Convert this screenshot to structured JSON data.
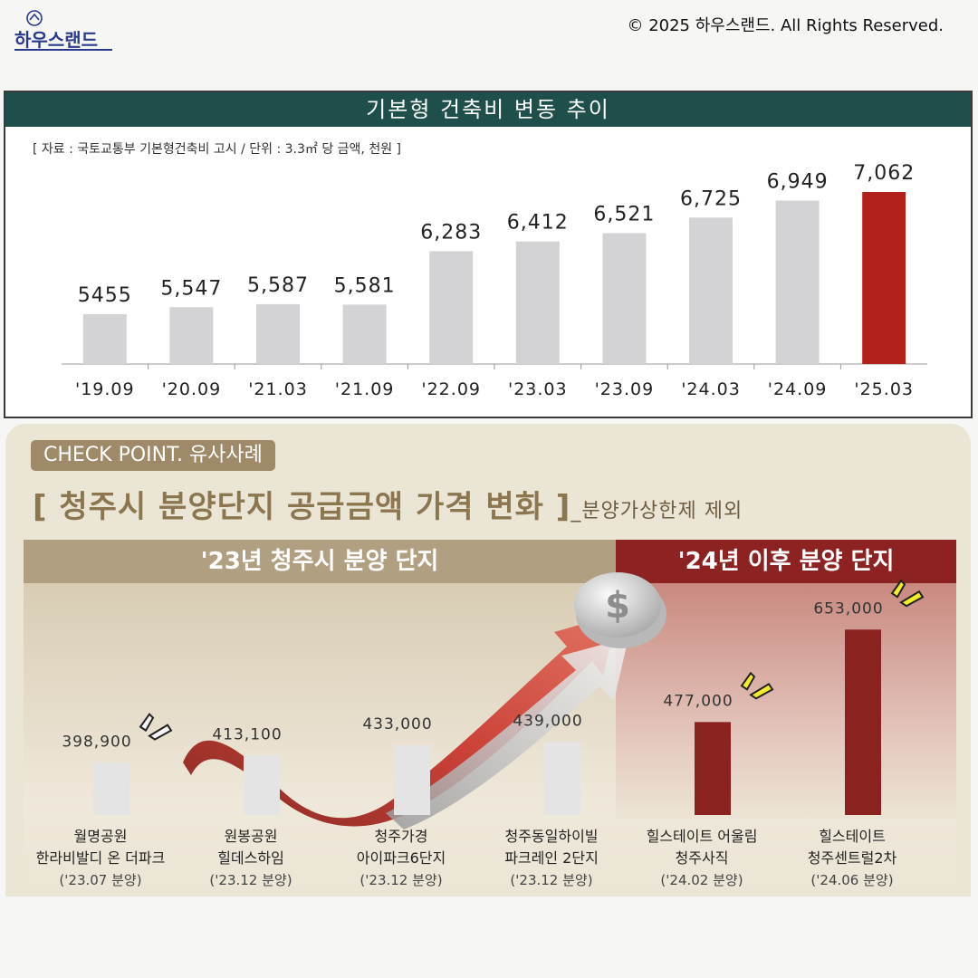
{
  "header": {
    "logo_text": "하우스랜드",
    "copyright": "© 2025 하우스랜드. All Rights Reserved."
  },
  "panel1": {
    "title": "기본형 건축비 변동 추이",
    "source": "[ 자료 : 국토교통부 기본형건축비 고시 / 단위 : 3.3㎡ 당 금액, 천원 ]"
  },
  "panel2": {
    "badge": "CHECK POINT. 유사사례",
    "subtitle": "[ 청주시 분양단지 공급금액 가격 변화 ]",
    "subtitle_note": "_분양가상한제 제외",
    "group_left": "'23년 청주시 분양 단지",
    "group_right": "'24년 이후 분양 단지"
  },
  "colors": {
    "bar_gray": "#d3d3d5",
    "bar_highlight": "#b2221b",
    "bar_recent": "#8a2220",
    "header_green": "#1f4f4a",
    "accent_brown": "#9e8a68"
  },
  "icons": [
    "dollar-coin-icon",
    "rising-arrow-icon",
    "spark-icon"
  ],
  "chart_data": [
    {
      "type": "bar",
      "title": "기본형 건축비 변동 추이",
      "categories": [
        "'19.09",
        "'20.09",
        "'21.03",
        "'21.09",
        "'22.09",
        "'23.03",
        "'23.09",
        "'24.03",
        "'24.09",
        "'25.03"
      ],
      "values": [
        5455,
        5547,
        5587,
        5581,
        6283,
        6412,
        6521,
        6725,
        6949,
        7062
      ],
      "value_labels": [
        "5455",
        "5,547",
        "5,587",
        "5,581",
        "6,283",
        "6,412",
        "6,521",
        "6,725",
        "6,949",
        "7,062"
      ],
      "highlight_index": 9,
      "ylim": [
        4800,
        7300
      ],
      "grid": false,
      "legend": "none"
    },
    {
      "type": "bar",
      "title": "[ 청주시 분양단지 공급금액 가격 변화 ]",
      "categories": [
        {
          "line1": "월명공원",
          "line2": "한라비발디 온 더파크",
          "date": "('23.07 분양)"
        },
        {
          "line1": "원봉공원",
          "line2": "힐데스하임",
          "date": "('23.12 분양)"
        },
        {
          "line1": "청주가경",
          "line2": "아이파크6단지",
          "date": "('23.12 분양)"
        },
        {
          "line1": "청주동일하이빌",
          "line2": "파크레인 2단지",
          "date": "('23.12 분양)"
        },
        {
          "line1": "힐스테이트 어울림",
          "line2": "청주사직",
          "date": "('24.02 분양)"
        },
        {
          "line1": "힐스테이트",
          "line2": "청주센트럴2차",
          "date": "('24.06 분양)"
        }
      ],
      "values": [
        398900,
        413100,
        433000,
        439000,
        477000,
        653000
      ],
      "value_labels": [
        "398,900",
        "413,100",
        "433,000",
        "439,000",
        "477,000",
        "653,000"
      ],
      "groups": [
        {
          "label": "'23년 청주시 분양 단지",
          "indices": [
            0,
            1,
            2,
            3
          ]
        },
        {
          "label": "'24년 이후 분양 단지",
          "indices": [
            4,
            5
          ]
        }
      ],
      "ylim": [
        300000,
        700000
      ],
      "grid": false,
      "legend": "none"
    }
  ]
}
